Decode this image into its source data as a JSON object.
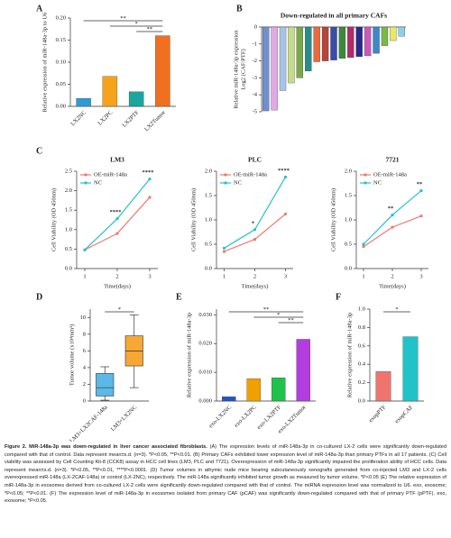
{
  "chart_data": [
    {
      "type": "bar",
      "panel": "A",
      "ylabel": "Relative expression of miR-148a-3p to U6",
      "categories": [
        "LX2NC",
        "LX2PC",
        "LX2PTF",
        "LX2Tumor"
      ],
      "values": [
        0.018,
        0.068,
        0.033,
        0.16
      ],
      "colors": [
        "#2f9bd6",
        "#f5a31a",
        "#1aa6a0",
        "#f07020"
      ],
      "ylim": [
        0,
        0.2
      ],
      "yticks": [
        {
          "value": 0,
          "label": "0.00"
        },
        0.05,
        {
          "value": 0.1,
          "label": "0.10"
        },
        0.15,
        {
          "value": 0.2,
          "label": "0.20"
        }
      ],
      "comparisons": [
        {
          "label": "**",
          "between": [
            0,
            3
          ]
        },
        {
          "label": "*",
          "between": [
            1,
            3
          ]
        },
        {
          "label": "**",
          "between": [
            2,
            3
          ]
        }
      ]
    },
    {
      "type": "bar",
      "panel": "B",
      "title": "Down-regulated in all primary CAFs",
      "ylabel": [
        "Relative miR-148a-3p expression",
        "Log2 (CAF/PTF)"
      ],
      "categories": [
        null,
        null,
        null,
        null,
        null,
        null,
        null,
        null,
        null,
        null,
        null,
        null,
        null,
        null,
        null,
        null,
        null
      ],
      "values": [
        -4.95,
        -4.9,
        -3.75,
        -3.3,
        -3.0,
        -2.6,
        -2.05,
        -2.0,
        -1.95,
        -1.85,
        -1.8,
        -1.75,
        -1.7,
        -1.55,
        -1.1,
        -0.8,
        -0.55
      ],
      "colors": [
        "#6f8fcf",
        "#e3a9e6",
        "#a9c3e8",
        "#c5dd88",
        "#7aa84a",
        "#2a8c8a",
        "#ec6a3a",
        "#b5443a",
        "#3a4ea8",
        "#3a8a3a",
        "#b32a6a",
        "#2a2a8a",
        "#ca5ab8",
        "#3a8ac8",
        "#7ab84a",
        "#e8e86a",
        "#8ad0e8"
      ],
      "ylim": [
        -5,
        0
      ],
      "yticks": [
        0,
        -1,
        -2,
        -3,
        -4,
        -5
      ]
    },
    {
      "type": "line",
      "panel": "C",
      "title": "LM3",
      "ylabel": "Cell Viability (OD 450nm)",
      "xlabel": "Time(days)",
      "x": [
        1,
        2,
        3
      ],
      "xlim": [
        0.75,
        3.25
      ],
      "xticks": [
        1,
        2,
        3
      ],
      "series": [
        {
          "name": "OE-miR-148a",
          "color": "#f0786e",
          "values": [
            0.48,
            0.9,
            1.83
          ]
        },
        {
          "name": "NC",
          "color": "#22c3c8",
          "values": [
            0.48,
            1.28,
            2.3
          ]
        }
      ],
      "ylim": [
        0,
        2.5
      ],
      "yticks": [
        {
          "value": 0,
          "label": "0.0"
        },
        0.5,
        {
          "value": 1,
          "label": "1.0"
        },
        1.5,
        {
          "value": 2,
          "label": "2.0"
        },
        2.5
      ],
      "annotations": [
        {
          "x": 2,
          "label": "****"
        },
        {
          "x": 3,
          "label": "****"
        }
      ]
    },
    {
      "type": "line",
      "title": "PLC",
      "ylabel": "Cell Viability (OD 450nm)",
      "xlabel": "Time(days)",
      "x": [
        1,
        2,
        3
      ],
      "xlim": [
        0.75,
        3.25
      ],
      "xticks": [
        1,
        2,
        3
      ],
      "series": [
        {
          "name": "OE-miR-148a",
          "color": "#f0786e",
          "values": [
            0.35,
            0.6,
            1.12
          ]
        },
        {
          "name": "NC",
          "color": "#22c3c8",
          "values": [
            0.42,
            0.8,
            1.88
          ]
        }
      ],
      "ylim": [
        0,
        2
      ],
      "yticks": [
        {
          "value": 0,
          "label": "0.0"
        },
        0.5,
        {
          "value": 1,
          "label": "1.0"
        },
        1.5,
        {
          "value": 2,
          "label": "2.0"
        }
      ],
      "annotations": [
        {
          "x": 2,
          "label": "*"
        },
        {
          "x": 3,
          "label": "****"
        }
      ]
    },
    {
      "type": "line",
      "title": "7721",
      "ylabel": "Cell Viability (OD 450nm)",
      "xlabel": "Time(days)",
      "x": [
        1,
        2,
        3
      ],
      "xlim": [
        0.75,
        3.25
      ],
      "xticks": [
        1,
        2,
        3
      ],
      "series": [
        {
          "name": "OE-miR-148a",
          "color": "#f0786e",
          "values": [
            0.45,
            0.85,
            1.08
          ]
        },
        {
          "name": "NC",
          "color": "#22c3c8",
          "values": [
            0.5,
            1.1,
            1.6
          ]
        }
      ],
      "ylim": [
        0,
        2
      ],
      "yticks": [
        {
          "value": 0,
          "label": "0.0"
        },
        0.5,
        {
          "value": 1,
          "label": "1.0"
        },
        1.5,
        {
          "value": 2,
          "label": "2.0"
        }
      ],
      "annotations": [
        {
          "x": 2,
          "label": "**"
        },
        {
          "x": 3,
          "label": "**"
        }
      ]
    },
    {
      "type": "box",
      "panel": "D",
      "ylabel": "Tumor volume (x10³mm³)",
      "categories": [
        "LM3+LX2CAF-148a",
        "LM3+LX2NC"
      ],
      "boxes": [
        {
          "color": "#5bb8e8",
          "min": 0.1,
          "q1": 0.6,
          "median": 1.6,
          "q3": 3.3,
          "max": 4.1
        },
        {
          "color": "#f7a733",
          "min": 1.6,
          "q1": 4.2,
          "median": 6.0,
          "q3": 7.8,
          "max": 10.3
        }
      ],
      "ylim": [
        0,
        11
      ],
      "yticks": [
        0,
        2,
        4,
        6,
        8,
        10
      ],
      "comparisons": [
        {
          "label": "*",
          "between": [
            0,
            1
          ]
        }
      ]
    },
    {
      "type": "bar",
      "panel": "E",
      "ylabel": "Relative expression of miR-148a-3p",
      "categories": [
        "exo-LX2NC",
        "exo-LX2PC",
        "exo-LX2PTF",
        "exo-LX2Tumor"
      ],
      "values": [
        0.0015,
        0.0078,
        0.0081,
        0.0215
      ],
      "colors": [
        "#2255cc",
        "#f0a000",
        "#1fc24a",
        "#b23ee0"
      ],
      "ylim": [
        0,
        0.032
      ],
      "yticks": [
        {
          "value": 0,
          "label": "0.000"
        },
        {
          "value": 0.01,
          "label": "0.010"
        },
        {
          "value": 0.02,
          "label": "0.020"
        },
        {
          "value": 0.03,
          "label": "0.030"
        }
      ],
      "comparisons": [
        {
          "label": "**",
          "between": [
            0,
            3
          ]
        },
        {
          "label": "*",
          "between": [
            1,
            3
          ]
        },
        {
          "label": "**",
          "between": [
            2,
            3
          ]
        }
      ]
    },
    {
      "type": "bar",
      "panel": "F",
      "ylabel": "Relative expression of miR-148a-3p",
      "categories": [
        "exopPTF",
        "exopCAF"
      ],
      "values": [
        0.32,
        0.7
      ],
      "colors": [
        "#f0746e",
        "#22c3c8"
      ],
      "ylim": [
        0,
        1
      ],
      "yticks": [
        {
          "value": 0,
          "label": "0.0"
        },
        0.2,
        0.4,
        0.6,
        0.8,
        {
          "value": 1,
          "label": "1.0"
        }
      ],
      "comparisons": [
        {
          "label": "*",
          "between": [
            0,
            1
          ]
        }
      ]
    }
  ],
  "caption": {
    "title": "Figure 2. MiR-148a-3p was down-regulated in liver cancer associated fibroblasts.",
    "text": "(A) The expression levels of miR-148a-3p in co-cultured LX-2 cells were significantly down-regulated compared with that of control. Data represent mean±s.d. (n=3). *P<0.05, **P<0.01. (B) Primary CAFs exhibited lower expression level of miR-148a-3p than primary PTFs in all 17 patients. (C) Cell viability was assessed by Cell Counting Kit-8 (CCK8) assay in HCC cell lines (LM3, PLC and 7721). Overexpression of miR-148a-3p significantly impaired the proliferation ability of HCC cells. Data represent mean±s.d. (n=3). *P<0.05, **P<0.01, ****P<0.0001. (D) Tumor volumes in athymic nude mice bearing subcutaneously xenografts generated from co-injected LM3 and LX-2 cells overexpressed miR-148a (LX-2CAF-148a) or control (LX-2NC), respectively. The miR-148a significantly inhibited tumor growth as measured by tumor volume. *P<0.05 (E) The relative expression of miR-148a-3p in exosomes derived from co-cultured LX-2 cells were significantly down-regulated compared with that of control. The miRNA expression level was normalized to U6. exo, exosome; *P<0.05; **P<0.01. (F) The expression level of miR-148a-3p in exosomes isolated from primary CAF (pCAF) was significantly down-regulated compared with that of primary PTF (pPTF). exo, exosome; *P<0.05."
  }
}
